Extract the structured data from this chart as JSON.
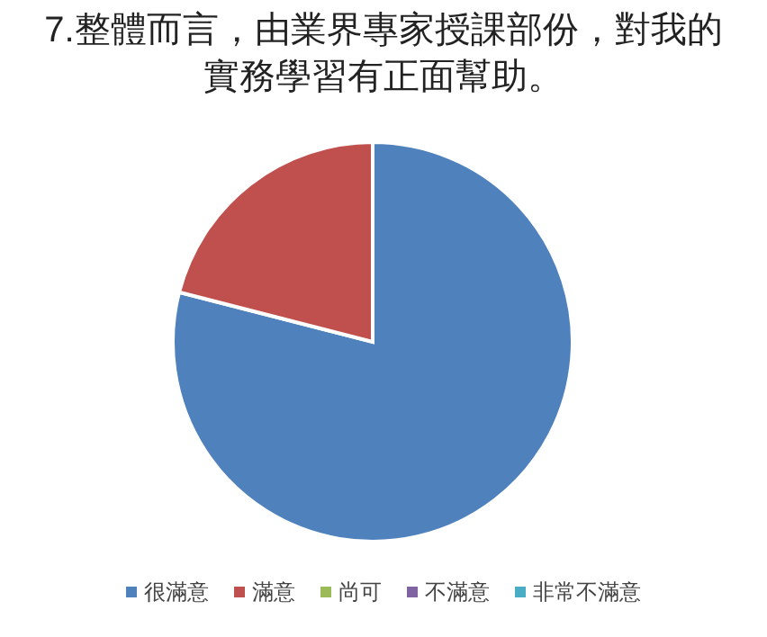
{
  "chart_data": {
    "type": "pie",
    "title": "7.整體而言，由業界專家授課部份，對我的實務學習有正面幫助。",
    "categories": [
      "很滿意",
      "滿意",
      "尚可",
      "不滿意",
      "非常不滿意"
    ],
    "values": [
      79,
      21,
      0,
      0,
      0
    ],
    "colors": [
      "#4f81bd",
      "#c0504d",
      "#9bbb59",
      "#8064a2",
      "#4bacc6"
    ],
    "legend": "bottom"
  }
}
